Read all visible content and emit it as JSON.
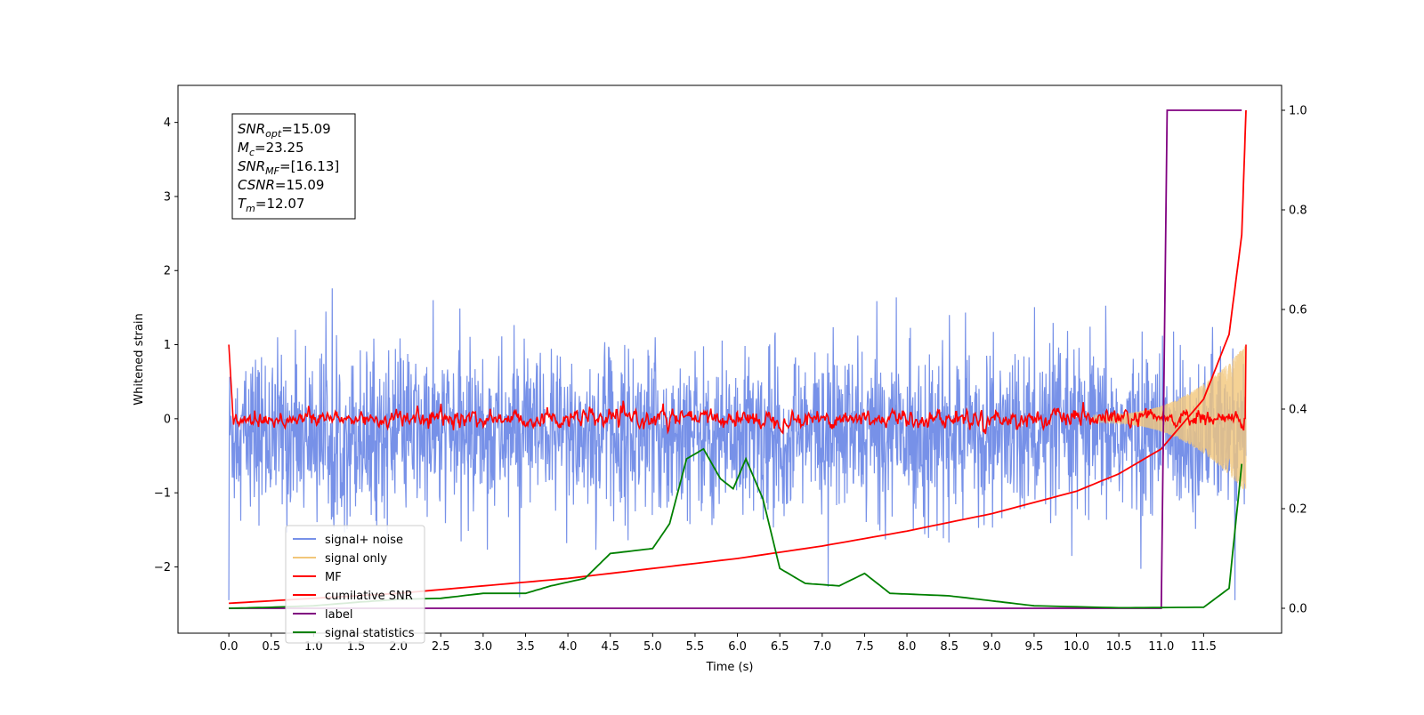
{
  "chart_data": {
    "type": "line",
    "xlabel": "Time (s)",
    "ylabel": "Whitened strain",
    "xlim": [
      -0.6,
      12.42
    ],
    "ylim": [
      -2.895,
      4.5
    ],
    "y2lim": [
      -0.05,
      1.05
    ],
    "x_ticks": [
      "0.0",
      "0.5",
      "1.0",
      "1.5",
      "2.0",
      "2.5",
      "3.0",
      "3.5",
      "4.0",
      "4.5",
      "5.0",
      "5.5",
      "6.0",
      "6.5",
      "7.0",
      "7.5",
      "8.0",
      "8.5",
      "9.0",
      "9.5",
      "10.0",
      "10.5",
      "11.0",
      "11.5"
    ],
    "y_ticks": [
      "−2",
      "−1",
      "0",
      "1",
      "2",
      "3",
      "4"
    ],
    "y2_ticks": [
      "0.0",
      "0.2",
      "0.4",
      "0.6",
      "0.8",
      "1.0"
    ],
    "grid": false,
    "legend_position": "lower-left",
    "annotation": {
      "lines": [
        {
          "symbol": "SNR",
          "sub": "opt",
          "value": "=15.09"
        },
        {
          "symbol": "M",
          "sub": "c",
          "value": "=23.25"
        },
        {
          "symbol": "SNR",
          "sub": "MF",
          "value": "=[16.13]"
        },
        {
          "symbol": "CSNR",
          "sub": "",
          "value": "=15.09"
        },
        {
          "symbol": "T",
          "sub": "m",
          "value": "=12.07"
        }
      ]
    },
    "series": [
      {
        "name": "signal+ noise",
        "color": "#7791e8",
        "axis": "left",
        "description": "noisy strain about -0.2 with std ~0.6, spikes to ~2, x 0 to 12"
      },
      {
        "name": "signal only",
        "color": "#f2c77a",
        "axis": "left",
        "description": "chirp amplitude growing from ~0 to ~1 near x=12"
      },
      {
        "name": "MF",
        "color": "#ff0000",
        "axis": "left",
        "description": "matched filter near 0 with small fluctuations, starts at 1.0"
      },
      {
        "name": "cumilative SNR",
        "color": "#ff0000",
        "axis": "right",
        "points": [
          [
            0.0,
            0.01
          ],
          [
            1,
            0.02
          ],
          [
            2,
            0.03
          ],
          [
            3,
            0.045
          ],
          [
            4,
            0.06
          ],
          [
            5,
            0.08
          ],
          [
            6,
            0.1
          ],
          [
            7,
            0.125
          ],
          [
            8,
            0.155
          ],
          [
            9,
            0.19
          ],
          [
            10,
            0.235
          ],
          [
            10.5,
            0.27
          ],
          [
            11,
            0.32
          ],
          [
            11.5,
            0.42
          ],
          [
            11.8,
            0.55
          ],
          [
            11.95,
            0.75
          ],
          [
            12.0,
            1.0
          ]
        ]
      },
      {
        "name": "label",
        "color": "#800080",
        "axis": "right",
        "points": [
          [
            0.0,
            0.0
          ],
          [
            11.0,
            0.0
          ],
          [
            11.07,
            1.0
          ],
          [
            11.95,
            1.0
          ]
        ]
      },
      {
        "name": "signal statistics",
        "color": "#008000",
        "axis": "right",
        "points": [
          [
            0.0,
            0.0
          ],
          [
            0.5,
            0.002
          ],
          [
            1.0,
            0.005
          ],
          [
            1.5,
            0.012
          ],
          [
            2.0,
            0.018
          ],
          [
            2.5,
            0.02
          ],
          [
            3.0,
            0.03
          ],
          [
            3.5,
            0.03
          ],
          [
            3.8,
            0.045
          ],
          [
            4.2,
            0.06
          ],
          [
            4.5,
            0.11
          ],
          [
            5.0,
            0.12
          ],
          [
            5.2,
            0.17
          ],
          [
            5.4,
            0.3
          ],
          [
            5.6,
            0.32
          ],
          [
            5.8,
            0.26
          ],
          [
            5.95,
            0.24
          ],
          [
            6.1,
            0.3
          ],
          [
            6.3,
            0.22
          ],
          [
            6.5,
            0.08
          ],
          [
            6.8,
            0.05
          ],
          [
            7.2,
            0.045
          ],
          [
            7.5,
            0.07
          ],
          [
            7.8,
            0.03
          ],
          [
            8.5,
            0.025
          ],
          [
            9.0,
            0.015
          ],
          [
            9.5,
            0.005
          ],
          [
            10.5,
            0.001
          ],
          [
            11.5,
            0.002
          ],
          [
            11.8,
            0.04
          ],
          [
            11.95,
            0.29
          ]
        ]
      }
    ]
  }
}
